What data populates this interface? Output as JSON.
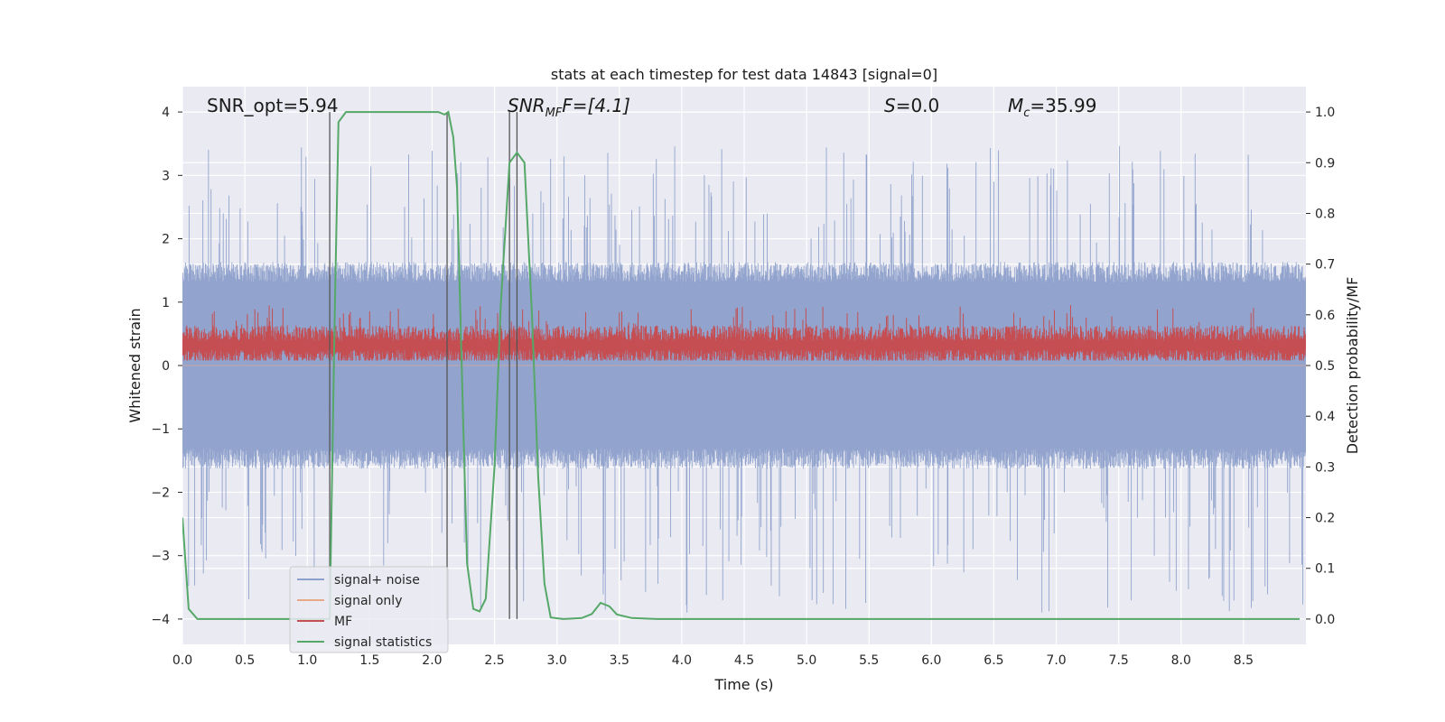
{
  "chart_data": {
    "type": "line",
    "title": "stats at each timestep for test data 14843 [signal=0]",
    "xlabel": "Time (s)",
    "ylabel_left": "Whitened strain",
    "ylabel_right": "Detection probability/MF",
    "xlim": [
      0,
      9
    ],
    "ylim_left": [
      -4.4,
      4.4
    ],
    "ylim_right": [
      -0.05,
      1.05
    ],
    "x_ticks": [
      0.0,
      0.5,
      1.0,
      1.5,
      2.0,
      2.5,
      3.0,
      3.5,
      4.0,
      4.5,
      5.0,
      5.5,
      6.0,
      6.5,
      7.0,
      7.5,
      8.0,
      8.5
    ],
    "x_tick_labels": [
      "0.0",
      "0.5",
      "1.0",
      "1.5",
      "2.0",
      "2.5",
      "3.0",
      "3.5",
      "4.0",
      "4.5",
      "5.0",
      "5.5",
      "6.0",
      "6.5",
      "7.0",
      "7.5",
      "8.0",
      "8.5"
    ],
    "y_left_ticks": [
      -4,
      -3,
      -2,
      -1,
      0,
      1,
      2,
      3,
      4
    ],
    "y_left_tick_labels": [
      "−4",
      "−3",
      "−2",
      "−1",
      "0",
      "1",
      "2",
      "3",
      "4"
    ],
    "y_right_ticks": [
      0.0,
      0.1,
      0.2,
      0.3,
      0.4,
      0.5,
      0.6,
      0.7,
      0.8,
      0.9,
      1.0
    ],
    "y_right_tick_labels": [
      "0.0",
      "0.1",
      "0.2",
      "0.3",
      "0.4",
      "0.5",
      "0.6",
      "0.7",
      "0.8",
      "0.9",
      "1.0"
    ],
    "grid": true,
    "background": "#eaeaf2",
    "legend_position": "lower-left",
    "annotations": {
      "snr_opt": "SNR_opt=5.94",
      "snr_mf_base": "SNR",
      "snr_mf_sub": "MF",
      "snr_mf_tail": "F=[4.1]",
      "s_label": "S",
      "s_value": "=0.0",
      "mc_base": "M",
      "mc_sub": "c",
      "mc_value": "=35.99"
    },
    "vertical_lines_x": [
      1.18,
      2.12,
      2.62,
      2.68
    ],
    "series": [
      {
        "name": "signal+ noise",
        "axis": "left",
        "color": "#8da0cb",
        "style": "noise",
        "typical_amplitude": 1.6,
        "peak_amplitude": 3.5,
        "note_values_range": [
          -3.9,
          3.5
        ]
      },
      {
        "name": "signal only",
        "axis": "left",
        "color": "#e8a987",
        "style": "flat",
        "value": 0.0
      },
      {
        "name": "MF",
        "axis": "right",
        "color": "#c44e52",
        "style": "noise",
        "baseline": 0.54,
        "typical_amplitude": 0.03,
        "peak": 0.62,
        "floor": 0.51
      },
      {
        "name": "signal statistics",
        "axis": "right",
        "color": "#55a868",
        "style": "line",
        "points": [
          [
            0.0,
            0.2
          ],
          [
            0.05,
            0.02
          ],
          [
            0.12,
            0.0
          ],
          [
            0.2,
            0.0
          ],
          [
            1.0,
            0.0
          ],
          [
            1.18,
            0.0
          ],
          [
            1.22,
            0.6
          ],
          [
            1.25,
            0.98
          ],
          [
            1.31,
            1.0
          ],
          [
            2.05,
            1.0
          ],
          [
            2.1,
            0.995
          ],
          [
            2.13,
            1.0
          ],
          [
            2.17,
            0.95
          ],
          [
            2.2,
            0.85
          ],
          [
            2.25,
            0.38
          ],
          [
            2.28,
            0.11
          ],
          [
            2.33,
            0.02
          ],
          [
            2.38,
            0.015
          ],
          [
            2.43,
            0.04
          ],
          [
            2.5,
            0.3
          ],
          [
            2.55,
            0.62
          ],
          [
            2.62,
            0.9
          ],
          [
            2.68,
            0.92
          ],
          [
            2.74,
            0.9
          ],
          [
            2.8,
            0.6
          ],
          [
            2.85,
            0.28
          ],
          [
            2.9,
            0.07
          ],
          [
            2.95,
            0.003
          ],
          [
            3.05,
            0.0
          ],
          [
            3.2,
            0.002
          ],
          [
            3.28,
            0.01
          ],
          [
            3.35,
            0.032
          ],
          [
            3.42,
            0.025
          ],
          [
            3.48,
            0.009
          ],
          [
            3.6,
            0.002
          ],
          [
            3.8,
            0.0
          ],
          [
            8.95,
            0.0
          ]
        ]
      }
    ]
  }
}
